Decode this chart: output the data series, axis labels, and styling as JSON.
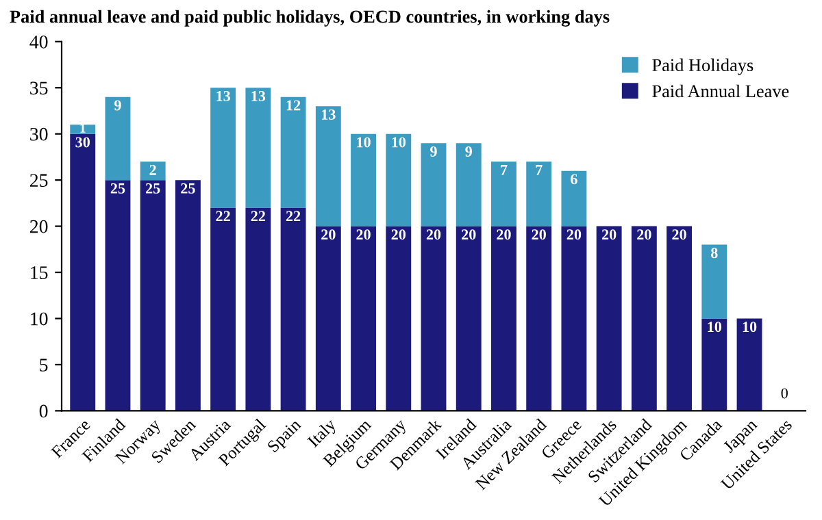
{
  "chart_data": {
    "type": "bar",
    "title": "Paid annual leave and paid public holidays, OECD countries, in working days",
    "categories": [
      "France",
      "Finland",
      "Norway",
      "Sweden",
      "Austria",
      "Portugal",
      "Spain",
      "Italy",
      "Belgium",
      "Germany",
      "Denmark",
      "Ireland",
      "Australia",
      "New Zealand",
      "Greece",
      "Netherlands",
      "Switzerland",
      "United Kingdom",
      "Canada",
      "Japan",
      "United States"
    ],
    "stacked": true,
    "series": [
      {
        "name": "Paid Annual Leave",
        "color": "#1c1a7a",
        "values": [
          30,
          25,
          25,
          25,
          22,
          22,
          22,
          20,
          20,
          20,
          20,
          20,
          20,
          20,
          20,
          20,
          20,
          20,
          10,
          10,
          0
        ],
        "value_labels": [
          "30",
          "25",
          "25",
          "25",
          "22",
          "22",
          "22",
          "20",
          "20",
          "20",
          "20",
          "20",
          "20",
          "20",
          "20",
          "20",
          "20",
          "20",
          "10",
          "10",
          "0"
        ]
      },
      {
        "name": "Paid Holidays",
        "color": "#3b9bc0",
        "values": [
          1,
          9,
          2,
          0,
          13,
          13,
          12,
          13,
          10,
          10,
          9,
          9,
          7,
          7,
          6,
          0,
          0,
          0,
          8,
          0,
          0
        ],
        "value_labels": [
          "1",
          "9",
          "2",
          null,
          "13",
          "13",
          "12",
          "13",
          "10",
          "10",
          "9",
          "9",
          "7",
          "7",
          "6",
          null,
          null,
          null,
          "8",
          null,
          null
        ]
      }
    ],
    "ylim": [
      0,
      40
    ],
    "yticks": [
      0,
      5,
      10,
      15,
      20,
      25,
      30,
      35,
      40
    ],
    "grid": false,
    "legend": "top right"
  }
}
